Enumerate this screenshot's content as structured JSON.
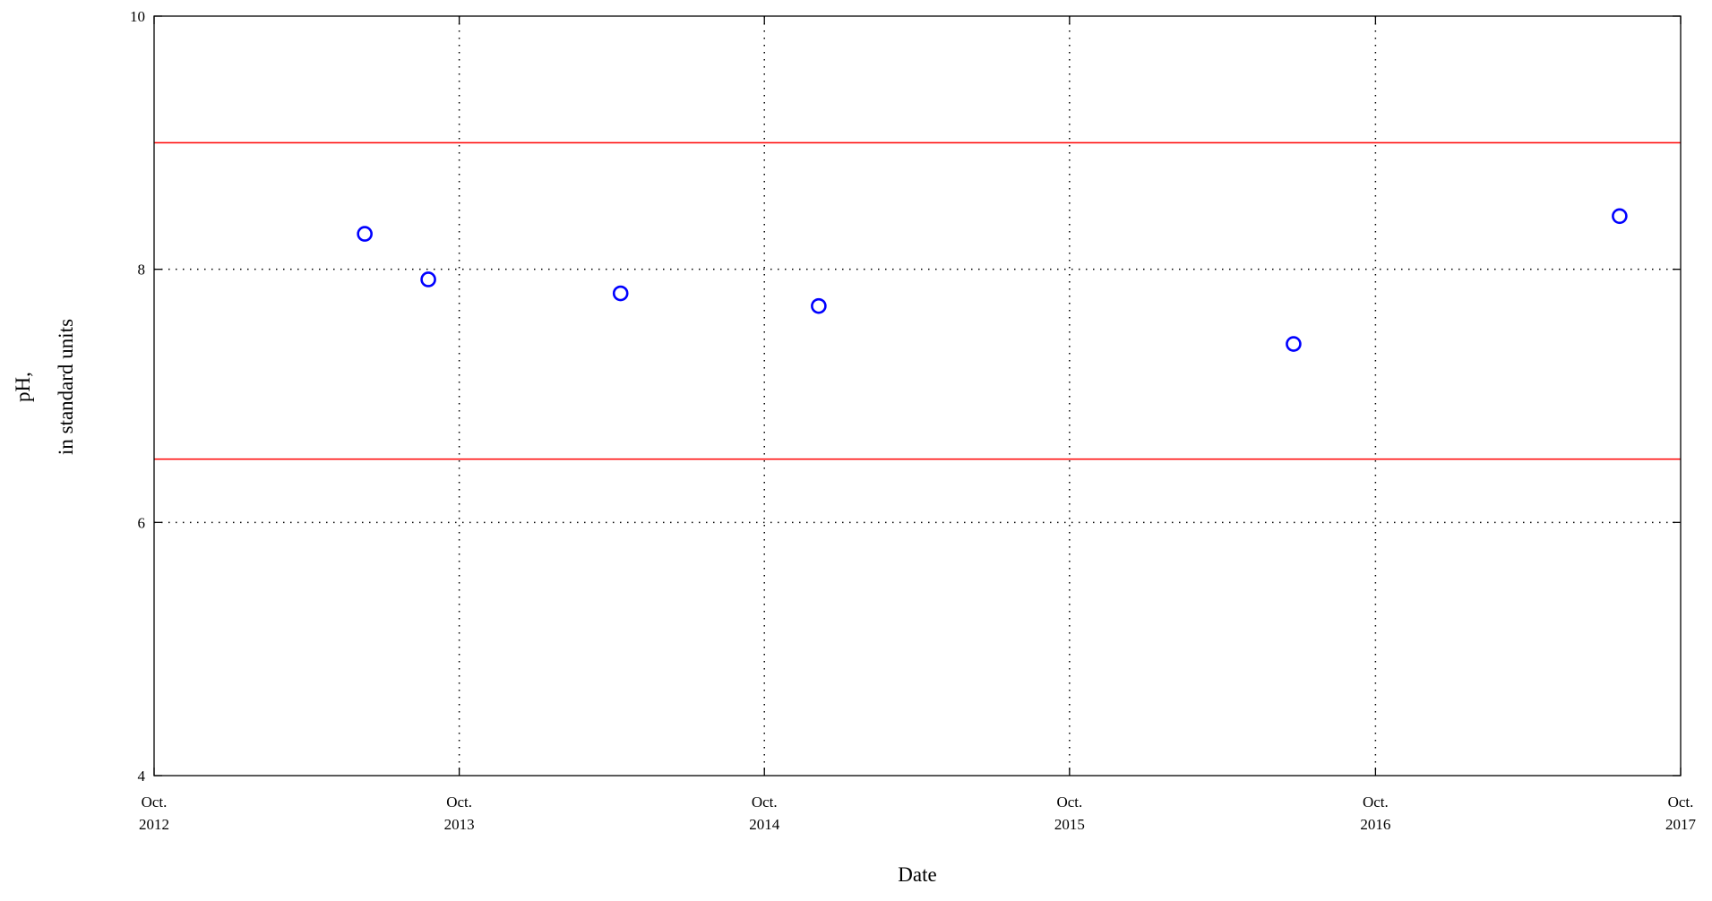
{
  "chart_data": {
    "type": "scatter",
    "xlabel": "Date",
    "ylabel": [
      "pH,",
      "in standard units"
    ],
    "x_ticks": [
      {
        "label": [
          "Oct.",
          "2012"
        ],
        "date": "2012-10-01"
      },
      {
        "label": [
          "Oct.",
          "2013"
        ],
        "date": "2013-10-01"
      },
      {
        "label": [
          "Oct.",
          "2014"
        ],
        "date": "2014-10-01"
      },
      {
        "label": [
          "Oct.",
          "2015"
        ],
        "date": "2015-10-01"
      },
      {
        "label": [
          "Oct.",
          "2016"
        ],
        "date": "2016-10-01"
      },
      {
        "label": [
          "Oct.",
          "2017"
        ],
        "date": "2017-10-01"
      }
    ],
    "y_ticks": [
      "4",
      "6",
      "8",
      "10"
    ],
    "xlim": [
      "2012-10-01",
      "2017-10-01"
    ],
    "ylim": [
      4,
      10
    ],
    "grid": true,
    "series": [
      {
        "marker": "open-circle",
        "color": "#0000ff",
        "points": [
          {
            "x": "2013-06-10",
            "y": 8.28
          },
          {
            "x": "2013-08-25",
            "y": 7.92
          },
          {
            "x": "2014-04-12",
            "y": 7.81
          },
          {
            "x": "2014-12-05",
            "y": 7.71
          },
          {
            "x": "2016-06-25",
            "y": 7.41
          },
          {
            "x": "2017-07-20",
            "y": 8.42
          }
        ]
      }
    ],
    "reference_lines": [
      {
        "y": 9.0,
        "color": "#ff0000"
      },
      {
        "y": 6.5,
        "color": "#ff0000"
      }
    ]
  }
}
